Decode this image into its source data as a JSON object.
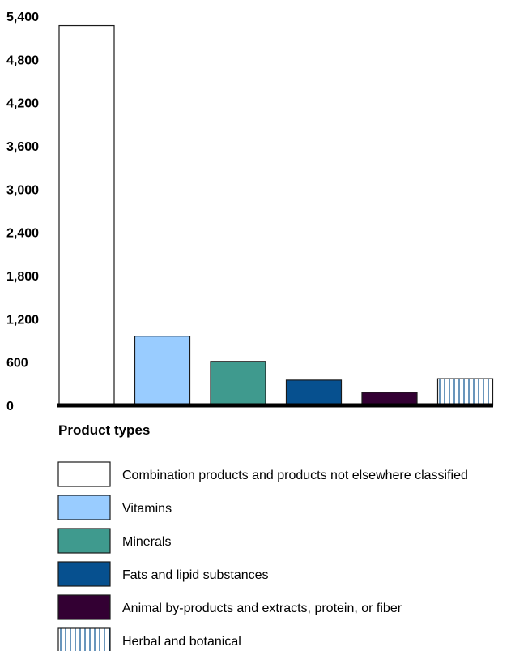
{
  "chart_data": {
    "type": "bar",
    "title": "",
    "xlabel": "Product types",
    "ylabel": "",
    "ylim": [
      0,
      5400
    ],
    "yticks": [
      "0",
      "600",
      "1,200",
      "1,800",
      "2,400",
      "3,000",
      "3,600",
      "4,200",
      "4,800",
      "5,400"
    ],
    "grid": false,
    "legend_position": "bottom",
    "categories": [
      "Combination products and products not elsewhere classified",
      "Vitamins",
      "Minerals",
      "Fats and lipid substances",
      "Animal by-products and extracts, protein, or fiber",
      "Herbal and botanical"
    ],
    "values": [
      5270,
      960,
      610,
      350,
      180,
      370
    ],
    "colors": [
      "#ffffff",
      "#99ccff",
      "#3f9a8e",
      "#06508f",
      "#330033",
      "#ffffff"
    ],
    "patterns": [
      "none",
      "none",
      "none",
      "none",
      "none",
      "vertical-lines"
    ]
  }
}
